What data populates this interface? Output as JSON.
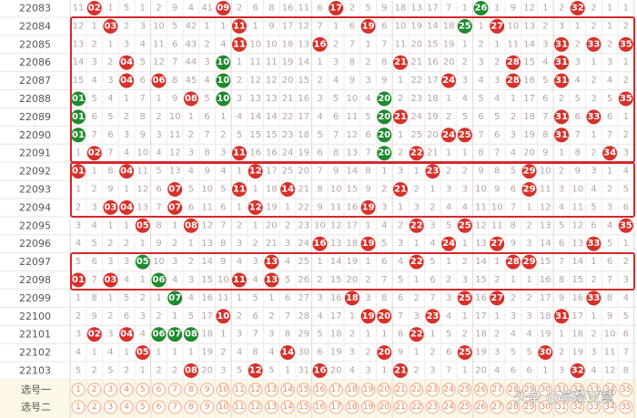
{
  "colors": {
    "red": "#d6312b",
    "green": "#1f8a2f"
  },
  "rows": [
    {
      "issue": "22083",
      "cells": [
        "11",
        {
          "text": "02",
          "color": "#d6312b"
        },
        "1",
        "5",
        "1",
        "2",
        "9",
        "4",
        "41",
        {
          "text": "09",
          "color": "#d6312b"
        },
        "2",
        "6",
        "8",
        "16",
        "11",
        "6",
        {
          "text": "17",
          "color": "#d6312b"
        },
        "2",
        "5",
        "9",
        "18",
        "13",
        "17",
        "7",
        "1",
        {
          "text": "26",
          "color": "#1f8a2f"
        },
        "1",
        "9",
        "12",
        "1",
        "2",
        {
          "text": "32",
          "color": "#d6312b"
        },
        "2",
        "1",
        "1"
      ]
    },
    {
      "issue": "22084",
      "cells": [
        "12",
        "1",
        {
          "text": "03",
          "color": "#d6312b"
        },
        "2",
        "3",
        "10",
        "5",
        "42",
        "1",
        "1",
        {
          "text": "11",
          "color": "#d6312b"
        },
        "1",
        "9",
        "17",
        "12",
        "7",
        "1",
        "6",
        {
          "text": "19",
          "color": "#d6312b"
        },
        "6",
        "10",
        "19",
        "14",
        "18",
        {
          "text": "25",
          "color": "#1f8a2f"
        },
        "1",
        {
          "text": "27",
          "color": "#d6312b"
        },
        "10",
        "13",
        "2",
        "3",
        "1",
        "2",
        "1",
        "2"
      ]
    },
    {
      "issue": "22085",
      "cells": [
        "13",
        "2",
        "1",
        "3",
        "4",
        "11",
        "6",
        "43",
        "2",
        "4",
        {
          "text": "11",
          "color": "#d6312b"
        },
        "10",
        "10",
        "18",
        "13",
        {
          "text": "16",
          "color": "#d6312b"
        },
        "2",
        "7",
        "1",
        "7",
        "11",
        "20",
        "15",
        "19",
        "1",
        "2",
        "1",
        "11",
        "14",
        "3",
        {
          "text": "31",
          "color": "#d6312b"
        },
        "2",
        {
          "text": "33",
          "color": "#d6312b"
        },
        "2",
        {
          "text": "35",
          "color": "#d6312b"
        }
      ]
    },
    {
      "issue": "22086",
      "cells": [
        "14",
        "3",
        "2",
        {
          "text": "04",
          "color": "#d6312b"
        },
        "5",
        "12",
        "7",
        "44",
        "3",
        {
          "text": "10",
          "color": "#1f8a2f"
        },
        "1",
        "11",
        "11",
        "19",
        "14",
        "1",
        "3",
        "8",
        "2",
        "8",
        {
          "text": "21",
          "color": "#d6312b"
        },
        "21",
        "16",
        "20",
        "2",
        "3",
        "2",
        {
          "text": "28",
          "color": "#d6312b"
        },
        "15",
        "4",
        {
          "text": "31",
          "color": "#d6312b"
        },
        "3",
        "1",
        "3",
        "1"
      ]
    },
    {
      "issue": "22087",
      "cells": [
        "15",
        "4",
        "3",
        {
          "text": "04",
          "color": "#d6312b"
        },
        "6",
        {
          "text": "06",
          "color": "#d6312b"
        },
        "8",
        "45",
        "4",
        {
          "text": "10",
          "color": "#1f8a2f"
        },
        "2",
        "12",
        "12",
        "20",
        "15",
        "2",
        "4",
        "9",
        "3",
        "9",
        "1",
        "22",
        "17",
        {
          "text": "24",
          "color": "#d6312b"
        },
        "3",
        "4",
        "3",
        {
          "text": "28",
          "color": "#d6312b"
        },
        "16",
        "5",
        {
          "text": "31",
          "color": "#d6312b"
        },
        "4",
        "2",
        "4",
        "2"
      ]
    },
    {
      "issue": "22088",
      "cells": [
        {
          "text": "01",
          "color": "#1f8a2f"
        },
        "5",
        "4",
        "1",
        "7",
        "1",
        "9",
        {
          "text": "08",
          "color": "#d6312b"
        },
        "5",
        {
          "text": "10",
          "color": "#1f8a2f"
        },
        "3",
        "13",
        "13",
        "21",
        "16",
        "3",
        "5",
        "10",
        "4",
        {
          "text": "20",
          "color": "#1f8a2f"
        },
        "2",
        "23",
        "18",
        "1",
        "4",
        "5",
        "4",
        "1",
        "17",
        "6",
        "2",
        "5",
        "3",
        "5",
        {
          "text": "35",
          "color": "#d6312b"
        }
      ]
    },
    {
      "issue": "22089",
      "cells": [
        {
          "text": "01",
          "color": "#1f8a2f"
        },
        "6",
        "5",
        "2",
        "8",
        "2",
        "10",
        "1",
        "6",
        "1",
        "4",
        "14",
        "14",
        "22",
        "17",
        "4",
        "6",
        "11",
        "5",
        {
          "text": "20",
          "color": "#1f8a2f"
        },
        {
          "text": "21",
          "color": "#d6312b"
        },
        "24",
        "19",
        "2",
        "5",
        "6",
        "5",
        "2",
        "18",
        "7",
        {
          "text": "31",
          "color": "#d6312b"
        },
        "6",
        {
          "text": "33",
          "color": "#d6312b"
        },
        "6",
        "1"
      ]
    },
    {
      "issue": "22090",
      "cells": [
        {
          "text": "01",
          "color": "#1f8a2f"
        },
        "7",
        "6",
        "3",
        "9",
        "3",
        "11",
        "2",
        "7",
        "2",
        "5",
        "15",
        "15",
        "23",
        "18",
        "5",
        "7",
        "12",
        "6",
        {
          "text": "20",
          "color": "#1f8a2f"
        },
        "1",
        "25",
        "20",
        {
          "text": "24",
          "color": "#d6312b"
        },
        {
          "text": "25",
          "color": "#d6312b"
        },
        "7",
        "6",
        "3",
        "19",
        "8",
        {
          "text": "31",
          "color": "#d6312b"
        },
        "7",
        "1",
        "7",
        "2"
      ]
    },
    {
      "issue": "22091",
      "cells": [
        "1",
        {
          "text": "02",
          "color": "#d6312b"
        },
        "7",
        "4",
        "10",
        "4",
        "12",
        "3",
        "8",
        "3",
        {
          "text": "11",
          "color": "#d6312b"
        },
        "16",
        "16",
        "24",
        "19",
        "6",
        "8",
        "13",
        "7",
        {
          "text": "20",
          "color": "#1f8a2f"
        },
        "2",
        {
          "text": "22",
          "color": "#d6312b"
        },
        "21",
        "1",
        "1",
        "8",
        "7",
        "4",
        "20",
        "9",
        "1",
        "8",
        "2",
        {
          "text": "34",
          "color": "#d6312b"
        },
        "3"
      ]
    },
    {
      "issue": "22092",
      "cells": [
        {
          "text": "01",
          "color": "#d6312b"
        },
        "1",
        "8",
        {
          "text": "04",
          "color": "#d6312b"
        },
        "11",
        "5",
        "13",
        "4",
        "9",
        "4",
        "1",
        {
          "text": "12",
          "color": "#d6312b"
        },
        "17",
        "25",
        "20",
        "7",
        "9",
        "14",
        "8",
        "1",
        "3",
        "1",
        {
          "text": "23",
          "color": "#d6312b"
        },
        "2",
        "2",
        "9",
        "8",
        "5",
        {
          "text": "29",
          "color": "#d6312b"
        },
        "10",
        "2",
        "9",
        "3",
        "1",
        "4"
      ]
    },
    {
      "issue": "22093",
      "cells": [
        "1",
        "2",
        "9",
        "1",
        "12",
        "6",
        {
          "text": "07",
          "color": "#d6312b"
        },
        "5",
        "10",
        "5",
        {
          "text": "11",
          "color": "#d6312b"
        },
        "1",
        "18",
        {
          "text": "14",
          "color": "#d6312b"
        },
        "21",
        "8",
        "10",
        "15",
        "9",
        "2",
        {
          "text": "21",
          "color": "#d6312b"
        },
        "2",
        "1",
        "3",
        "3",
        "10",
        "9",
        "6",
        {
          "text": "29",
          "color": "#d6312b"
        },
        "11",
        "3",
        "10",
        "4",
        "2",
        "5"
      ]
    },
    {
      "issue": "22094",
      "cells": [
        "2",
        "3",
        {
          "text": "03",
          "color": "#d6312b"
        },
        {
          "text": "04",
          "color": "#d6312b"
        },
        "13",
        "7",
        {
          "text": "07",
          "color": "#d6312b"
        },
        "6",
        "11",
        "6",
        "1",
        {
          "text": "12",
          "color": "#d6312b"
        },
        "19",
        "1",
        "22",
        "9",
        "11",
        "16",
        {
          "text": "19",
          "color": "#d6312b"
        },
        "3",
        "1",
        "3",
        "2",
        "4",
        "4",
        "11",
        "10",
        "7",
        "1",
        "12",
        "4",
        "11",
        "5",
        "3",
        "6"
      ]
    },
    {
      "issue": "22095",
      "cells": [
        "3",
        "4",
        "1",
        "1",
        {
          "text": "05",
          "color": "#d6312b"
        },
        "8",
        "1",
        {
          "text": "08",
          "color": "#d6312b"
        },
        "12",
        "7",
        "2",
        "1",
        "20",
        "2",
        "23",
        "10",
        "12",
        "17",
        "1",
        "4",
        "2",
        {
          "text": "22",
          "color": "#d6312b"
        },
        "3",
        "5",
        {
          "text": "25",
          "color": "#d6312b"
        },
        "12",
        "11",
        "8",
        "2",
        "13",
        "5",
        "12",
        "6",
        "4",
        {
          "text": "35",
          "color": "#d6312b"
        }
      ]
    },
    {
      "issue": "22096",
      "cells": [
        "4",
        "5",
        "2",
        "2",
        "1",
        "9",
        "2",
        "1",
        "13",
        "8",
        "3",
        "2",
        "21",
        "3",
        "24",
        {
          "text": "16",
          "color": "#d6312b"
        },
        "13",
        "18",
        {
          "text": "19",
          "color": "#d6312b"
        },
        "5",
        "3",
        "1",
        "4",
        {
          "text": "24",
          "color": "#d6312b"
        },
        "1",
        "13",
        {
          "text": "27",
          "color": "#d6312b"
        },
        "9",
        "3",
        "14",
        "6",
        "13",
        {
          "text": "33",
          "color": "#d6312b"
        },
        "5",
        "1"
      ]
    },
    {
      "issue": "22097",
      "cells": [
        "5",
        "6",
        "3",
        "3",
        {
          "text": "05",
          "color": "#1f8a2f"
        },
        "10",
        "3",
        "2",
        "14",
        "9",
        "4",
        "3",
        {
          "text": "13",
          "color": "#d6312b"
        },
        "4",
        "25",
        "1",
        "14",
        "19",
        "1",
        "6",
        "4",
        {
          "text": "22",
          "color": "#d6312b"
        },
        "5",
        "1",
        "2",
        "14",
        "1",
        {
          "text": "28",
          "color": "#d6312b"
        },
        {
          "text": "29",
          "color": "#d6312b"
        },
        "15",
        "7",
        "14",
        "1",
        "6",
        "2"
      ]
    },
    {
      "issue": "22098",
      "cells": [
        {
          "text": "01",
          "color": "#d6312b"
        },
        "7",
        {
          "text": "03",
          "color": "#d6312b"
        },
        "4",
        "1",
        {
          "text": "06",
          "color": "#1f8a2f"
        },
        "4",
        "3",
        "15",
        "10",
        {
          "text": "11",
          "color": "#d6312b"
        },
        "4",
        {
          "text": "13",
          "color": "#d6312b"
        },
        "5",
        "26",
        "2",
        "15",
        "20",
        "2",
        "7",
        "5",
        "1",
        "6",
        "2",
        "3",
        "15",
        "2",
        "1",
        "1",
        "16",
        "8",
        "15",
        "2",
        "7",
        "3"
      ]
    },
    {
      "issue": "22099",
      "cells": [
        "1",
        "8",
        "1",
        "5",
        "2",
        "1",
        {
          "text": "07",
          "color": "#1f8a2f"
        },
        "4",
        "16",
        "11",
        "1",
        "5",
        "1",
        "6",
        "27",
        "3",
        "16",
        {
          "text": "18",
          "color": "#d6312b"
        },
        "3",
        "8",
        "6",
        "2",
        "7",
        "3",
        {
          "text": "25",
          "color": "#d6312b"
        },
        "16",
        {
          "text": "27",
          "color": "#d6312b"
        },
        "2",
        "2",
        "17",
        "9",
        "16",
        {
          "text": "33",
          "color": "#d6312b"
        },
        "8",
        "4"
      ]
    },
    {
      "issue": "22100",
      "cells": [
        "2",
        "9",
        "2",
        "6",
        "3",
        "2",
        "1",
        "5",
        "17",
        {
          "text": "10",
          "color": "#d6312b"
        },
        "2",
        "6",
        "2",
        "7",
        "28",
        "4",
        "17",
        "1",
        {
          "text": "19",
          "color": "#d6312b"
        },
        {
          "text": "20",
          "color": "#d6312b"
        },
        "7",
        "3",
        {
          "text": "23",
          "color": "#d6312b"
        },
        "4",
        "1",
        "17",
        "1",
        "3",
        "3",
        "18",
        {
          "text": "31",
          "color": "#d6312b"
        },
        "17",
        "1",
        "9",
        "5"
      ]
    },
    {
      "issue": "22101",
      "cells": [
        "3",
        {
          "text": "02",
          "color": "#d6312b"
        },
        "3",
        {
          "text": "04",
          "color": "#d6312b"
        },
        "4",
        {
          "text": "06",
          "color": "#1f8a2f"
        },
        {
          "text": "07",
          "color": "#1f8a2f"
        },
        {
          "text": "08",
          "color": "#1f8a2f"
        },
        "18",
        "1",
        "3",
        "7",
        "3",
        "8",
        "29",
        "5",
        "18",
        "2",
        "1",
        "1",
        "8",
        {
          "text": "22",
          "color": "#d6312b"
        },
        "1",
        "5",
        "2",
        "18",
        "2",
        "4",
        "4",
        "19",
        "1",
        "18",
        "2",
        "10",
        "6"
      ]
    },
    {
      "issue": "22102",
      "cells": [
        "4",
        "1",
        "4",
        "1",
        {
          "text": "05",
          "color": "#d6312b"
        },
        "1",
        "1",
        "1",
        "19",
        "2",
        "4",
        "8",
        "4",
        {
          "text": "14",
          "color": "#d6312b"
        },
        "30",
        "6",
        "19",
        "3",
        "2",
        {
          "text": "20",
          "color": "#d6312b"
        },
        "9",
        "1",
        "2",
        "6",
        {
          "text": "25",
          "color": "#d6312b"
        },
        "19",
        "3",
        "5",
        "5",
        {
          "text": "30",
          "color": "#d6312b"
        },
        "2",
        "19",
        "3",
        "11",
        "7"
      ]
    },
    {
      "issue": "22103",
      "cells": [
        "5",
        "2",
        "5",
        "2",
        "1",
        "2",
        "2",
        {
          "text": "08",
          "color": "#d6312b"
        },
        "20",
        "3",
        "5",
        {
          "text": "12",
          "color": "#d6312b"
        },
        "5",
        "1",
        "31",
        {
          "text": "16",
          "color": "#d6312b"
        },
        "20",
        "4",
        "3",
        "1",
        {
          "text": "21",
          "color": "#d6312b"
        },
        "2",
        "3",
        "7",
        "1",
        "20",
        "4",
        "6",
        "6",
        "1",
        "3",
        {
          "text": "32",
          "color": "#d6312b"
        },
        "4",
        "12",
        "8"
      ]
    }
  ],
  "footer": [
    {
      "label": "选号一",
      "numbers": [
        "1",
        "2",
        "3",
        "4",
        "5",
        "6",
        "7",
        "8",
        "9",
        "10",
        "11",
        "12",
        "13",
        "14",
        "15",
        "16",
        "17",
        "18",
        "19",
        "20",
        "21",
        "22",
        "23",
        "24",
        "25",
        "26",
        "27",
        "28",
        "29",
        "30",
        "31",
        "32",
        "33",
        "34",
        "35"
      ]
    },
    {
      "label": "选号二",
      "numbers": [
        "1",
        "2",
        "3",
        "4",
        "5",
        "6",
        "7",
        "8",
        "9",
        "10",
        "11",
        "12",
        "13",
        "14",
        "15",
        "16",
        "17",
        "18",
        "19",
        "20",
        "21",
        "22",
        "23",
        "24",
        "25",
        "26",
        "27",
        "28",
        "29",
        "30",
        "31",
        "32",
        "33",
        "34",
        "35"
      ]
    }
  ],
  "watermark": "头条 @幕黎亚慧"
}
